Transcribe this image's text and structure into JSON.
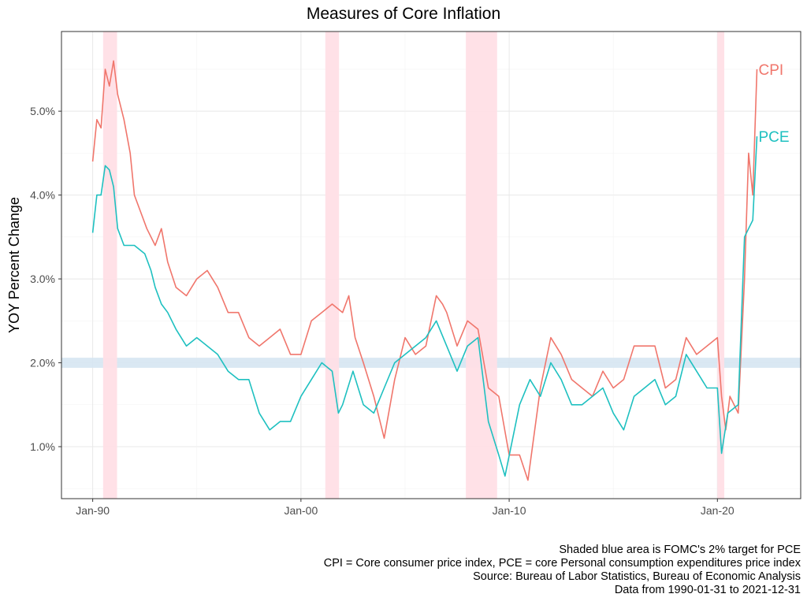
{
  "chart_data": {
    "type": "line",
    "title": "Measures of Core Inflation",
    "ylabel": "YOY Percent Change",
    "xlabel": "",
    "xlim": [
      1988.5,
      2024.0
    ],
    "ylim": [
      0.38,
      5.95
    ],
    "x_ticks": [
      {
        "x": 1990.0,
        "label": "Jan-90"
      },
      {
        "x": 2000.0,
        "label": "Jan-00"
      },
      {
        "x": 2010.0,
        "label": "Jan-10"
      },
      {
        "x": 2020.0,
        "label": "Jan-20"
      }
    ],
    "y_ticks": [
      {
        "y": 1.0,
        "label": "1.0%"
      },
      {
        "y": 2.0,
        "label": "2.0%"
      },
      {
        "y": 3.0,
        "label": "3.0%"
      },
      {
        "y": 4.0,
        "label": "4.0%"
      },
      {
        "y": 5.0,
        "label": "5.0%"
      }
    ],
    "grid": true,
    "target_band": {
      "y_min": 1.94,
      "y_max": 2.06,
      "color": "#d6e6f2"
    },
    "recessions": [
      {
        "start": 1990.5,
        "end": 1991.17
      },
      {
        "start": 2001.17,
        "end": 2001.83
      },
      {
        "start": 2007.92,
        "end": 2009.42
      },
      {
        "start": 2020.0,
        "end": 2020.33
      }
    ],
    "recession_color": "#ffdfe6",
    "series": [
      {
        "name": "CPI",
        "color": "#f0766c",
        "points": [
          [
            1990.0,
            4.4
          ],
          [
            1990.2,
            4.9
          ],
          [
            1990.4,
            4.8
          ],
          [
            1990.6,
            5.5
          ],
          [
            1990.8,
            5.3
          ],
          [
            1991.0,
            5.6
          ],
          [
            1991.2,
            5.2
          ],
          [
            1991.5,
            4.9
          ],
          [
            1991.8,
            4.5
          ],
          [
            1992.0,
            4.0
          ],
          [
            1992.3,
            3.8
          ],
          [
            1992.6,
            3.6
          ],
          [
            1993.0,
            3.4
          ],
          [
            1993.3,
            3.6
          ],
          [
            1993.6,
            3.2
          ],
          [
            1994.0,
            2.9
          ],
          [
            1994.5,
            2.8
          ],
          [
            1995.0,
            3.0
          ],
          [
            1995.5,
            3.1
          ],
          [
            1996.0,
            2.9
          ],
          [
            1996.5,
            2.6
          ],
          [
            1997.0,
            2.6
          ],
          [
            1997.5,
            2.3
          ],
          [
            1998.0,
            2.2
          ],
          [
            1998.5,
            2.3
          ],
          [
            1999.0,
            2.4
          ],
          [
            1999.5,
            2.1
          ],
          [
            2000.0,
            2.1
          ],
          [
            2000.5,
            2.5
          ],
          [
            2001.0,
            2.6
          ],
          [
            2001.5,
            2.7
          ],
          [
            2002.0,
            2.6
          ],
          [
            2002.3,
            2.8
          ],
          [
            2002.6,
            2.3
          ],
          [
            2003.0,
            2.0
          ],
          [
            2003.5,
            1.6
          ],
          [
            2004.0,
            1.1
          ],
          [
            2004.5,
            1.8
          ],
          [
            2005.0,
            2.3
          ],
          [
            2005.5,
            2.1
          ],
          [
            2006.0,
            2.2
          ],
          [
            2006.5,
            2.8
          ],
          [
            2006.8,
            2.7
          ],
          [
            2007.0,
            2.6
          ],
          [
            2007.5,
            2.2
          ],
          [
            2008.0,
            2.5
          ],
          [
            2008.5,
            2.4
          ],
          [
            2009.0,
            1.7
          ],
          [
            2009.5,
            1.6
          ],
          [
            2010.0,
            0.9
          ],
          [
            2010.5,
            0.9
          ],
          [
            2010.9,
            0.6
          ],
          [
            2011.5,
            1.7
          ],
          [
            2012.0,
            2.3
          ],
          [
            2012.5,
            2.1
          ],
          [
            2013.0,
            1.8
          ],
          [
            2013.5,
            1.7
          ],
          [
            2014.0,
            1.6
          ],
          [
            2014.5,
            1.9
          ],
          [
            2015.0,
            1.7
          ],
          [
            2015.5,
            1.8
          ],
          [
            2016.0,
            2.2
          ],
          [
            2016.5,
            2.2
          ],
          [
            2017.0,
            2.2
          ],
          [
            2017.5,
            1.7
          ],
          [
            2018.0,
            1.8
          ],
          [
            2018.5,
            2.3
          ],
          [
            2019.0,
            2.1
          ],
          [
            2019.5,
            2.2
          ],
          [
            2020.0,
            2.3
          ],
          [
            2020.2,
            1.6
          ],
          [
            2020.4,
            1.2
          ],
          [
            2020.6,
            1.6
          ],
          [
            2021.0,
            1.4
          ],
          [
            2021.3,
            3.0
          ],
          [
            2021.5,
            4.5
          ],
          [
            2021.7,
            4.0
          ],
          [
            2021.9,
            5.5
          ]
        ]
      },
      {
        "name": "PCE",
        "color": "#1ec0c0",
        "points": [
          [
            1990.0,
            3.55
          ],
          [
            1990.2,
            4.0
          ],
          [
            1990.4,
            4.0
          ],
          [
            1990.6,
            4.35
          ],
          [
            1990.8,
            4.3
          ],
          [
            1991.0,
            4.1
          ],
          [
            1991.2,
            3.6
          ],
          [
            1991.5,
            3.4
          ],
          [
            1992.0,
            3.4
          ],
          [
            1992.5,
            3.3
          ],
          [
            1992.8,
            3.1
          ],
          [
            1993.0,
            2.9
          ],
          [
            1993.3,
            2.7
          ],
          [
            1993.6,
            2.6
          ],
          [
            1994.0,
            2.4
          ],
          [
            1994.5,
            2.2
          ],
          [
            1995.0,
            2.3
          ],
          [
            1995.5,
            2.2
          ],
          [
            1996.0,
            2.1
          ],
          [
            1996.5,
            1.9
          ],
          [
            1997.0,
            1.8
          ],
          [
            1997.5,
            1.8
          ],
          [
            1998.0,
            1.4
          ],
          [
            1998.5,
            1.2
          ],
          [
            1999.0,
            1.3
          ],
          [
            1999.5,
            1.3
          ],
          [
            2000.0,
            1.6
          ],
          [
            2000.5,
            1.8
          ],
          [
            2001.0,
            2.0
          ],
          [
            2001.5,
            1.9
          ],
          [
            2001.8,
            1.4
          ],
          [
            2002.0,
            1.5
          ],
          [
            2002.5,
            1.9
          ],
          [
            2003.0,
            1.5
          ],
          [
            2003.5,
            1.4
          ],
          [
            2004.0,
            1.7
          ],
          [
            2004.5,
            2.0
          ],
          [
            2005.0,
            2.1
          ],
          [
            2005.5,
            2.2
          ],
          [
            2006.0,
            2.3
          ],
          [
            2006.5,
            2.5
          ],
          [
            2007.0,
            2.2
          ],
          [
            2007.5,
            1.9
          ],
          [
            2008.0,
            2.2
          ],
          [
            2008.5,
            2.3
          ],
          [
            2009.0,
            1.3
          ],
          [
            2009.5,
            0.9
          ],
          [
            2009.8,
            0.65
          ],
          [
            2010.5,
            1.5
          ],
          [
            2011.0,
            1.8
          ],
          [
            2011.5,
            1.6
          ],
          [
            2012.0,
            2.0
          ],
          [
            2012.5,
            1.8
          ],
          [
            2013.0,
            1.5
          ],
          [
            2013.5,
            1.5
          ],
          [
            2014.0,
            1.6
          ],
          [
            2014.5,
            1.7
          ],
          [
            2015.0,
            1.4
          ],
          [
            2015.5,
            1.2
          ],
          [
            2016.0,
            1.6
          ],
          [
            2016.5,
            1.7
          ],
          [
            2017.0,
            1.8
          ],
          [
            2017.5,
            1.5
          ],
          [
            2018.0,
            1.6
          ],
          [
            2018.5,
            2.1
          ],
          [
            2019.0,
            1.9
          ],
          [
            2019.5,
            1.7
          ],
          [
            2020.0,
            1.7
          ],
          [
            2020.2,
            0.92
          ],
          [
            2020.5,
            1.4
          ],
          [
            2021.0,
            1.5
          ],
          [
            2021.3,
            3.5
          ],
          [
            2021.5,
            3.6
          ],
          [
            2021.7,
            3.7
          ],
          [
            2021.9,
            4.7
          ]
        ]
      }
    ]
  },
  "caption": {
    "line1": "Shaded blue area is FOMC's 2% target for PCE",
    "line2": "CPI = Core consumer price index, PCE = core Personal consumption expenditures price index",
    "line3": "Source: Bureau of Labor Statistics, Bureau of Economic Analysis",
    "line4": "Data from 1990-01-31 to 2021-12-31"
  }
}
